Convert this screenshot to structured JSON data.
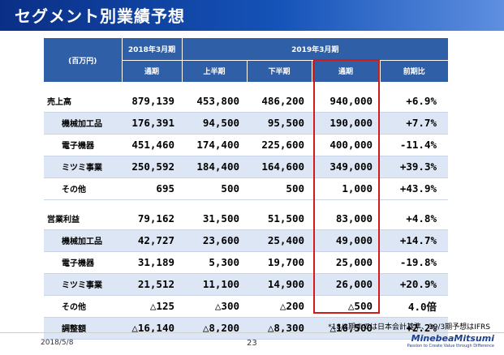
{
  "title": "セグメント別業績予想",
  "header": {
    "unit": "(百万円)",
    "fy2018": "2018年3月期",
    "fy2019": "2019年3月期",
    "full_year_2018": "通期",
    "first_half": "上半期",
    "second_half": "下半期",
    "full_year_2019": "通期",
    "yoy": "前期比"
  },
  "sales_rows": [
    {
      "name": "売上高",
      "fy18": "879,139",
      "h1": "453,800",
      "h2": "486,200",
      "fy19": "940,000",
      "yoy": "+6.9%"
    },
    {
      "name": "機械加工品",
      "fy18": "176,391",
      "h1": "94,500",
      "h2": "95,500",
      "fy19": "190,000",
      "yoy": "+7.7%"
    },
    {
      "name": "電子機器",
      "fy18": "451,460",
      "h1": "174,400",
      "h2": "225,600",
      "fy19": "400,000",
      "yoy": "-11.4%"
    },
    {
      "name": "ミツミ事業",
      "fy18": "250,592",
      "h1": "184,400",
      "h2": "164,600",
      "fy19": "349,000",
      "yoy": "+39.3%"
    },
    {
      "name": "その他",
      "fy18": "695",
      "h1": "500",
      "h2": "500",
      "fy19": "1,000",
      "yoy": "+43.9%"
    }
  ],
  "op_rows": [
    {
      "name": "営業利益",
      "fy18": "79,162",
      "h1": "31,500",
      "h2": "51,500",
      "fy19": "83,000",
      "yoy": "+4.8%"
    },
    {
      "name": "機械加工品",
      "fy18": "42,727",
      "h1": "23,600",
      "h2": "25,400",
      "fy19": "49,000",
      "yoy": "+14.7%"
    },
    {
      "name": "電子機器",
      "fy18": "31,189",
      "h1": "5,300",
      "h2": "19,700",
      "fy19": "25,000",
      "yoy": "-19.8%"
    },
    {
      "name": "ミツミ事業",
      "fy18": "21,512",
      "h1": "11,100",
      "h2": "14,900",
      "fy19": "26,000",
      "yoy": "+20.9%"
    },
    {
      "name": "その他",
      "fy18": "△125",
      "h1": "△300",
      "h2": "△200",
      "fy19": "△500",
      "yoy": "4.0倍"
    },
    {
      "name": "調整額",
      "fy18": "△16,140",
      "h1": "△8,200",
      "h2": "△8,300",
      "fy19": "△16,500",
      "yoy": "+2.2%"
    }
  ],
  "footnote": "*18/3期までは日本会計基準、19/3期予想はIFRS",
  "footer": {
    "date": "2018/5/8",
    "page": "23",
    "logo_main": "MinebeaMitsumi",
    "logo_tagline": "Passion to Create Value through Difference"
  },
  "colors": {
    "banner": "#1553b8",
    "header_bg": "#2f5fa6",
    "alt_row": "#dce6f5",
    "highlight": "#d11a1a"
  }
}
